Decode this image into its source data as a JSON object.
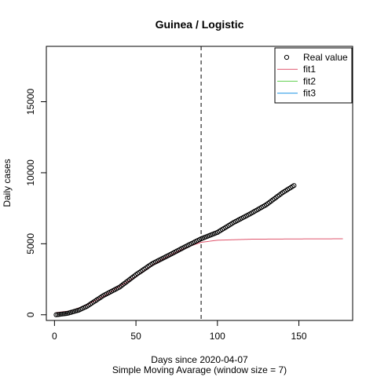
{
  "chart_data": {
    "type": "scatter",
    "title": "Guinea / Logistic",
    "xlabel": "Days since 2020-04-07",
    "subtitle": "Simple Moving Avarage (window size = 7)",
    "ylabel": "Daily cases",
    "xlim": [
      -5,
      183
    ],
    "ylim": [
      -400,
      18900
    ],
    "xticks": [
      0,
      50,
      100,
      150
    ],
    "yticks": [
      0,
      5000,
      10000,
      15000
    ],
    "vline_x": 90,
    "legend_position": "top-right",
    "legend": [
      {
        "label": "Real value",
        "kind": "point",
        "color": "#000000"
      },
      {
        "label": "fit1",
        "kind": "line",
        "color": "#DF536B"
      },
      {
        "label": "fit2",
        "kind": "line",
        "color": "#61D04F"
      },
      {
        "label": "fit3",
        "kind": "line",
        "color": "#2297E6"
      }
    ],
    "real_value": {
      "x_start": 1,
      "x_end": 147,
      "anchors": [
        [
          1,
          0
        ],
        [
          8,
          100
        ],
        [
          15,
          330
        ],
        [
          20,
          600
        ],
        [
          30,
          1350
        ],
        [
          40,
          1950
        ],
        [
          50,
          2820
        ],
        [
          60,
          3600
        ],
        [
          70,
          4180
        ],
        [
          80,
          4780
        ],
        [
          90,
          5350
        ],
        [
          100,
          5800
        ],
        [
          110,
          6500
        ],
        [
          120,
          7100
        ],
        [
          130,
          7750
        ],
        [
          140,
          8600
        ],
        [
          147,
          9100
        ]
      ]
    },
    "fit1": {
      "color": "#DF536B",
      "anchors": [
        [
          1,
          150
        ],
        [
          10,
          280
        ],
        [
          20,
          700
        ],
        [
          30,
          1300
        ],
        [
          40,
          2000
        ],
        [
          50,
          2700
        ],
        [
          60,
          3500
        ],
        [
          70,
          4150
        ],
        [
          80,
          4700
        ],
        [
          90,
          5100
        ],
        [
          100,
          5250
        ],
        [
          120,
          5320
        ],
        [
          150,
          5340
        ],
        [
          177,
          5350
        ]
      ]
    }
  }
}
